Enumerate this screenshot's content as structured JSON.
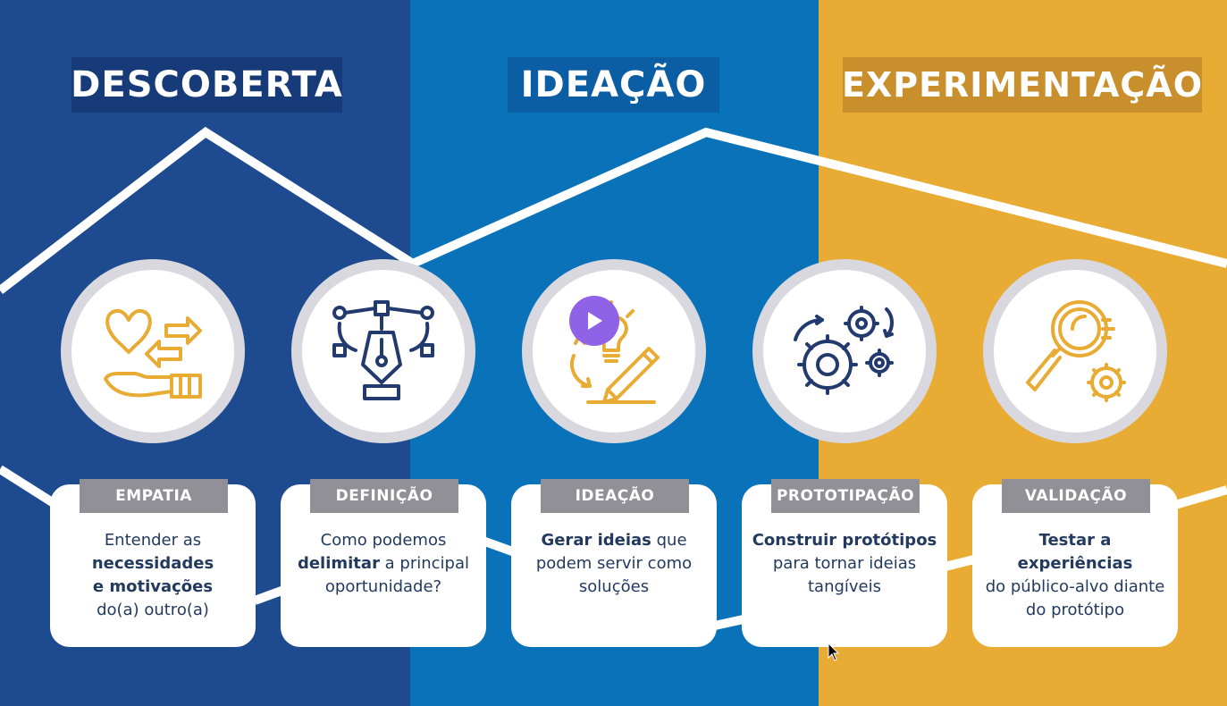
{
  "phases": [
    {
      "title": "DESCOBERTA",
      "color": "#1e4b8f"
    },
    {
      "title": "IDEAÇÃO",
      "color": "#0a72b9"
    },
    {
      "title": "EXPERIMENTAÇÃO",
      "color": "#e8ac35"
    }
  ],
  "steps": [
    {
      "tag": "EMPATIA",
      "icon": "heart-hand-icon",
      "parts": [
        {
          "t": "Entender as",
          "b": false
        },
        {
          "t": "necessidades",
          "b": true
        },
        {
          "t": "e motivações",
          "b": true
        },
        {
          "t": "do(a) outro(a)",
          "b": false
        }
      ]
    },
    {
      "tag": "DEFINIÇÃO",
      "icon": "pen-tool-icon",
      "parts": [
        {
          "t": "Como podemos",
          "b": false
        },
        {
          "t": "delimitar",
          "b": true
        },
        {
          "t": " a principal oportunidade?",
          "b": false
        }
      ]
    },
    {
      "tag": "IDEAÇÃO",
      "icon": "lightbulb-pencil-icon",
      "parts": [
        {
          "t": "Gerar ideias",
          "b": true
        },
        {
          "t": " que podem servir como soluções",
          "b": false
        }
      ]
    },
    {
      "tag": "PROTOTIPAÇÃO",
      "icon": "gears-icon",
      "parts": [
        {
          "t": "Construir protótipos",
          "b": true
        },
        {
          "t": "para tornar ideias tangíveis",
          "b": false
        }
      ]
    },
    {
      "tag": "VALIDAÇÃO",
      "icon": "magnifier-gear-icon",
      "parts": [
        {
          "t": "Testar a experiências",
          "b": true
        },
        {
          "t": "do público-alvo diante do protótipo",
          "b": false
        }
      ]
    }
  ],
  "accent_colors": {
    "navy": "#233a6e",
    "gold": "#e8ac35"
  }
}
